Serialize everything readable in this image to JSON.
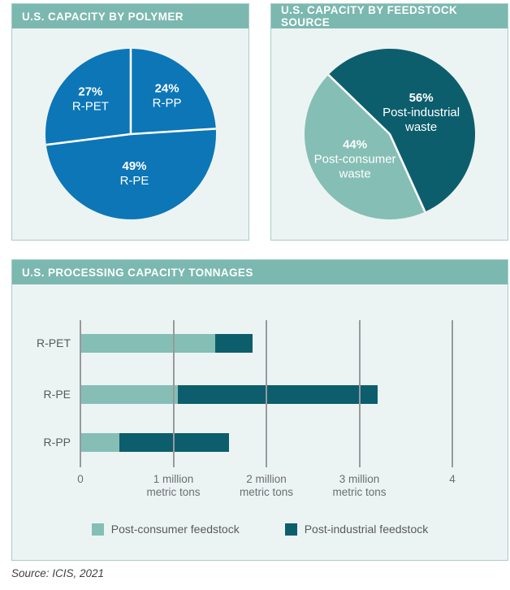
{
  "colors": {
    "blue": "#0c76b7",
    "teal_dark": "#0d5e6d",
    "teal_light": "#85beb5",
    "header_bg": "#7bb8af",
    "panel_bg": "#ecf4f3",
    "panel_border": "#a6cec8",
    "gridline": "#97999c",
    "axis_text": "#6d6e71",
    "text_gray": "#58595b"
  },
  "panels": {
    "polymer": {
      "title": "U.S. CAPACITY BY POLYMER"
    },
    "feedstock": {
      "title": "U.S. CAPACITY BY FEEDSTOCK SOURCE"
    },
    "tonnages": {
      "title": "U.S. PROCESSING CAPACITY TONNAGES"
    }
  },
  "source": "Source: ICIS, 2021",
  "chart_data": [
    {
      "type": "pie",
      "title": "U.S. CAPACITY BY POLYMER",
      "start_angle": 0,
      "divider_color": "#ffffff",
      "slices": [
        {
          "id": "r-pp",
          "label": "R-PP",
          "value": 24,
          "color": "#0c76b7",
          "label_lines": [
            "24%",
            "R-PP"
          ],
          "label_r": 0.62
        },
        {
          "id": "r-pe",
          "label": "R-PE",
          "value": 49,
          "color": "#0c76b7",
          "label_lines": [
            "49%",
            "R-PE"
          ],
          "label_r": 0.46
        },
        {
          "id": "r-pet",
          "label": "R-PET",
          "value": 27,
          "color": "#0c76b7",
          "label_lines": [
            "27%",
            "R-PET"
          ],
          "label_r": 0.63
        }
      ]
    },
    {
      "type": "pie",
      "title": "U.S. CAPACITY BY FEEDSTOCK SOURCE",
      "start_angle": -46,
      "divider_color": "#ffffff",
      "slices": [
        {
          "id": "post-industrial-waste",
          "label": "Post-industrial waste",
          "value": 56,
          "color": "#0d5e6d",
          "label_lines": [
            "56%",
            "Post-industrial",
            "waste"
          ],
          "label_r": 0.45
        },
        {
          "id": "post-consumer-waste",
          "label": "Post-consumer waste",
          "value": 44,
          "color": "#85beb5",
          "label_lines": [
            "44%",
            "Post-consumer",
            "waste"
          ],
          "label_r": 0.5
        }
      ]
    },
    {
      "type": "bar",
      "orientation": "horizontal-stacked",
      "title": "U.S. PROCESSING CAPACITY TONNAGES",
      "categories": [
        "R-PET",
        "R-PE",
        "R-PP"
      ],
      "series": [
        {
          "name": "Post-consumer feedstock",
          "color_key": "teal_light",
          "values": [
            1.45,
            1.05,
            0.42
          ]
        },
        {
          "name": "Post-industrial feedstock",
          "color_key": "teal_dark",
          "values": [
            0.4,
            2.15,
            1.18
          ]
        }
      ],
      "unit": "million metric tons",
      "xlim": [
        0,
        4
      ],
      "grid": true,
      "legend_position": "bottom",
      "ticks": [
        {
          "x": 0,
          "lines": [
            "0"
          ]
        },
        {
          "x": 1,
          "lines": [
            "1 million",
            "metric tons"
          ]
        },
        {
          "x": 2,
          "lines": [
            "2 million",
            "metric tons"
          ]
        },
        {
          "x": 3,
          "lines": [
            "3 million",
            "metric tons"
          ]
        },
        {
          "x": 4,
          "lines": [
            "4"
          ]
        }
      ]
    }
  ]
}
